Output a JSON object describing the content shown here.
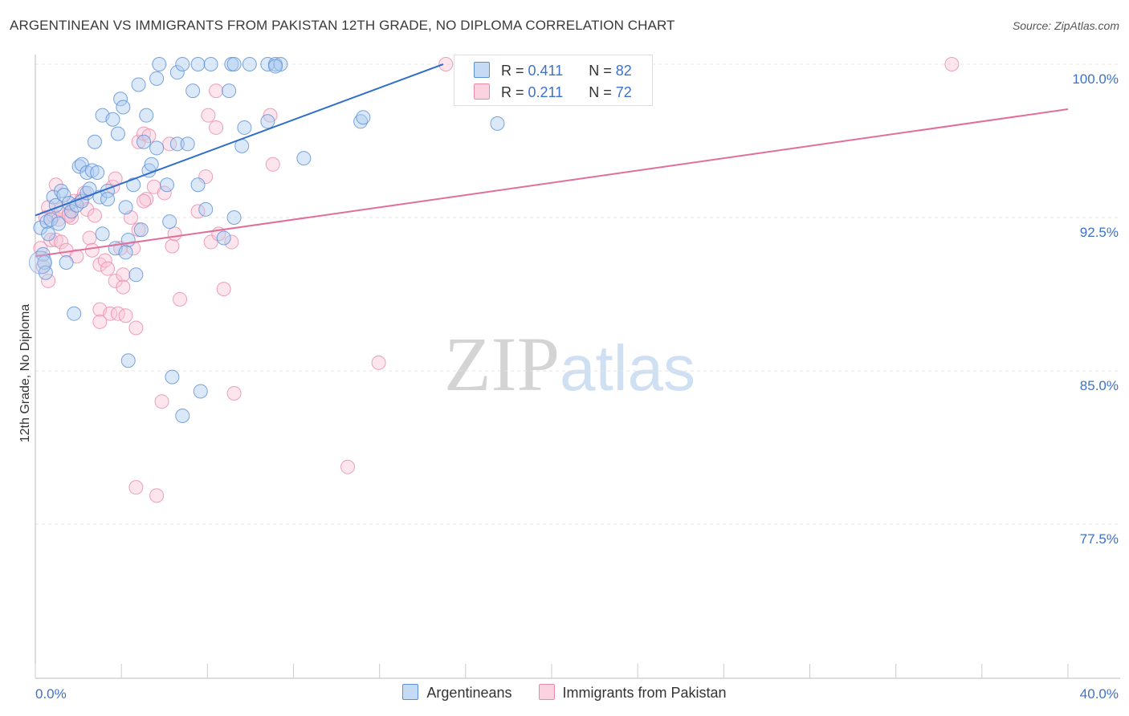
{
  "title": "ARGENTINEAN VS IMMIGRANTS FROM PAKISTAN 12TH GRADE, NO DIPLOMA CORRELATION CHART",
  "source": "Source: ZipAtlas.com",
  "watermark": {
    "zip": "ZIP",
    "atlas": "atlas"
  },
  "legend_stats": [
    {
      "r_label": "R = ",
      "r_value": "0.411",
      "n_label": "N = ",
      "n_value": "82"
    },
    {
      "r_label": "R = ",
      "r_value": "0.211",
      "n_label": "N = ",
      "n_value": "72"
    }
  ],
  "colors": {
    "blue_fill": "#aecbf0",
    "blue_stroke": "#5b8fd6",
    "blue_line": "#2f6fca",
    "pink_fill": "#f8c5d6",
    "pink_stroke": "#e88aa8",
    "pink_line": "#e0709b",
    "axis_text": "#3d72c8",
    "grid": "#e3e3e3"
  },
  "chart_data": {
    "type": "scatter",
    "title": "ARGENTINEAN VS IMMIGRANTS FROM PAKISTAN 12TH GRADE, NO DIPLOMA CORRELATION CHART",
    "xlabel": "",
    "ylabel": "12th Grade, No Diploma",
    "xlim": [
      0,
      40
    ],
    "ylim": [
      70.0,
      101.0
    ],
    "x_tick_labels": [
      "0.0%",
      "40.0%"
    ],
    "y_ticks": [
      77.5,
      85.0,
      92.5,
      100.0
    ],
    "y_tick_labels": [
      "77.5%",
      "85.0%",
      "92.5%",
      "100.0%"
    ],
    "grid": true,
    "legend_position": "top-center",
    "series": [
      {
        "name": "Argentineans",
        "r": 0.411,
        "n": 82,
        "trend": [
          [
            0.0,
            92.6
          ],
          [
            15.8,
            100.0
          ]
        ],
        "points": [
          [
            0.2,
            92.0
          ],
          [
            0.3,
            90.7
          ],
          [
            0.35,
            90.3
          ],
          [
            0.4,
            89.8
          ],
          [
            0.45,
            92.3
          ],
          [
            0.5,
            91.7
          ],
          [
            0.6,
            92.4
          ],
          [
            0.7,
            93.5
          ],
          [
            0.8,
            93.1
          ],
          [
            0.9,
            92.2
          ],
          [
            1.0,
            93.8
          ],
          [
            1.1,
            93.6
          ],
          [
            1.2,
            90.3
          ],
          [
            1.3,
            93.2
          ],
          [
            1.4,
            92.8
          ],
          [
            1.5,
            87.8
          ],
          [
            1.6,
            93.1
          ],
          [
            1.7,
            95.0
          ],
          [
            1.8,
            95.1
          ],
          [
            1.8,
            93.3
          ],
          [
            2.0,
            93.7
          ],
          [
            2.0,
            94.7
          ],
          [
            2.1,
            93.9
          ],
          [
            2.2,
            94.8
          ],
          [
            2.3,
            96.2
          ],
          [
            2.4,
            94.7
          ],
          [
            2.5,
            93.5
          ],
          [
            2.6,
            91.7
          ],
          [
            2.6,
            97.5
          ],
          [
            2.8,
            93.8
          ],
          [
            2.8,
            93.4
          ],
          [
            3.0,
            97.3
          ],
          [
            3.1,
            91.0
          ],
          [
            3.2,
            96.6
          ],
          [
            3.3,
            98.3
          ],
          [
            3.4,
            97.9
          ],
          [
            3.5,
            93.0
          ],
          [
            3.6,
            91.4
          ],
          [
            3.6,
            85.5
          ],
          [
            3.8,
            94.1
          ],
          [
            3.9,
            89.7
          ],
          [
            4.0,
            99.0
          ],
          [
            4.1,
            91.9
          ],
          [
            4.2,
            96.2
          ],
          [
            4.3,
            97.5
          ],
          [
            4.4,
            94.8
          ],
          [
            4.5,
            95.1
          ],
          [
            4.7,
            95.9
          ],
          [
            4.7,
            99.3
          ],
          [
            4.8,
            100.0
          ],
          [
            5.1,
            94.1
          ],
          [
            5.2,
            92.3
          ],
          [
            5.3,
            84.7
          ],
          [
            5.5,
            96.1
          ],
          [
            5.5,
            99.6
          ],
          [
            5.7,
            100.0
          ],
          [
            5.7,
            82.8
          ],
          [
            5.9,
            96.1
          ],
          [
            6.1,
            98.7
          ],
          [
            6.3,
            100.0
          ],
          [
            6.3,
            94.1
          ],
          [
            6.4,
            84.0
          ],
          [
            6.6,
            92.9
          ],
          [
            6.8,
            100.0
          ],
          [
            7.3,
            91.5
          ],
          [
            7.5,
            98.7
          ],
          [
            7.6,
            100.0
          ],
          [
            7.7,
            100.0
          ],
          [
            7.7,
            92.5
          ],
          [
            8.0,
            96.0
          ],
          [
            8.1,
            96.9
          ],
          [
            8.3,
            100.0
          ],
          [
            9.0,
            97.2
          ],
          [
            9.0,
            100.0
          ],
          [
            9.3,
            100.0
          ],
          [
            9.5,
            100.0
          ],
          [
            10.4,
            95.4
          ],
          [
            12.6,
            97.2
          ],
          [
            12.7,
            97.4
          ],
          [
            17.9,
            97.1
          ],
          [
            9.3,
            99.9
          ],
          [
            3.5,
            90.8
          ]
        ]
      },
      {
        "name": "Immigrants from Pakistan",
        "r": 0.211,
        "n": 72,
        "trend": [
          [
            0.0,
            90.6
          ],
          [
            40.0,
            97.8
          ]
        ],
        "points": [
          [
            0.2,
            91.0
          ],
          [
            0.3,
            90.1
          ],
          [
            0.4,
            92.5
          ],
          [
            0.5,
            93.0
          ],
          [
            0.5,
            89.4
          ],
          [
            0.6,
            91.4
          ],
          [
            0.7,
            92.6
          ],
          [
            0.8,
            91.4
          ],
          [
            0.8,
            94.1
          ],
          [
            0.9,
            92.4
          ],
          [
            1.0,
            91.3
          ],
          [
            1.0,
            92.9
          ],
          [
            1.2,
            90.9
          ],
          [
            1.3,
            92.7
          ],
          [
            1.4,
            92.5
          ],
          [
            1.5,
            93.3
          ],
          [
            1.6,
            90.6
          ],
          [
            1.8,
            93.4
          ],
          [
            1.9,
            93.7
          ],
          [
            2.0,
            92.9
          ],
          [
            2.1,
            91.5
          ],
          [
            2.2,
            90.9
          ],
          [
            2.3,
            92.6
          ],
          [
            2.5,
            88.0
          ],
          [
            2.5,
            87.4
          ],
          [
            2.5,
            90.2
          ],
          [
            2.7,
            90.4
          ],
          [
            2.8,
            90.0
          ],
          [
            2.9,
            87.8
          ],
          [
            3.0,
            94.0
          ],
          [
            3.1,
            94.4
          ],
          [
            3.1,
            89.4
          ],
          [
            3.2,
            87.8
          ],
          [
            3.3,
            91.0
          ],
          [
            3.4,
            89.7
          ],
          [
            3.4,
            89.1
          ],
          [
            3.5,
            87.7
          ],
          [
            3.7,
            92.5
          ],
          [
            3.8,
            91.0
          ],
          [
            3.9,
            87.1
          ],
          [
            4.0,
            96.2
          ],
          [
            4.0,
            91.9
          ],
          [
            4.2,
            96.6
          ],
          [
            4.3,
            93.4
          ],
          [
            4.4,
            96.5
          ],
          [
            4.6,
            94.0
          ],
          [
            4.9,
            83.5
          ],
          [
            5.0,
            93.7
          ],
          [
            5.2,
            96.1
          ],
          [
            5.3,
            91.1
          ],
          [
            5.4,
            91.7
          ],
          [
            5.6,
            88.5
          ],
          [
            6.3,
            92.8
          ],
          [
            6.6,
            94.5
          ],
          [
            6.7,
            97.5
          ],
          [
            6.8,
            91.3
          ],
          [
            7.0,
            96.9
          ],
          [
            7.0,
            98.7
          ],
          [
            7.1,
            91.7
          ],
          [
            7.3,
            89.0
          ],
          [
            7.6,
            91.3
          ],
          [
            7.7,
            83.9
          ],
          [
            9.1,
            97.5
          ],
          [
            9.2,
            95.1
          ],
          [
            12.1,
            80.3
          ],
          [
            13.3,
            85.4
          ],
          [
            15.9,
            100.0
          ],
          [
            35.5,
            100.0
          ],
          [
            3.9,
            79.3
          ],
          [
            4.7,
            78.9
          ],
          [
            4.2,
            93.3
          ],
          [
            1.3,
            92.6
          ]
        ]
      }
    ]
  },
  "bottom_legend": [
    "Argentineans",
    "Immigrants from Pakistan"
  ]
}
